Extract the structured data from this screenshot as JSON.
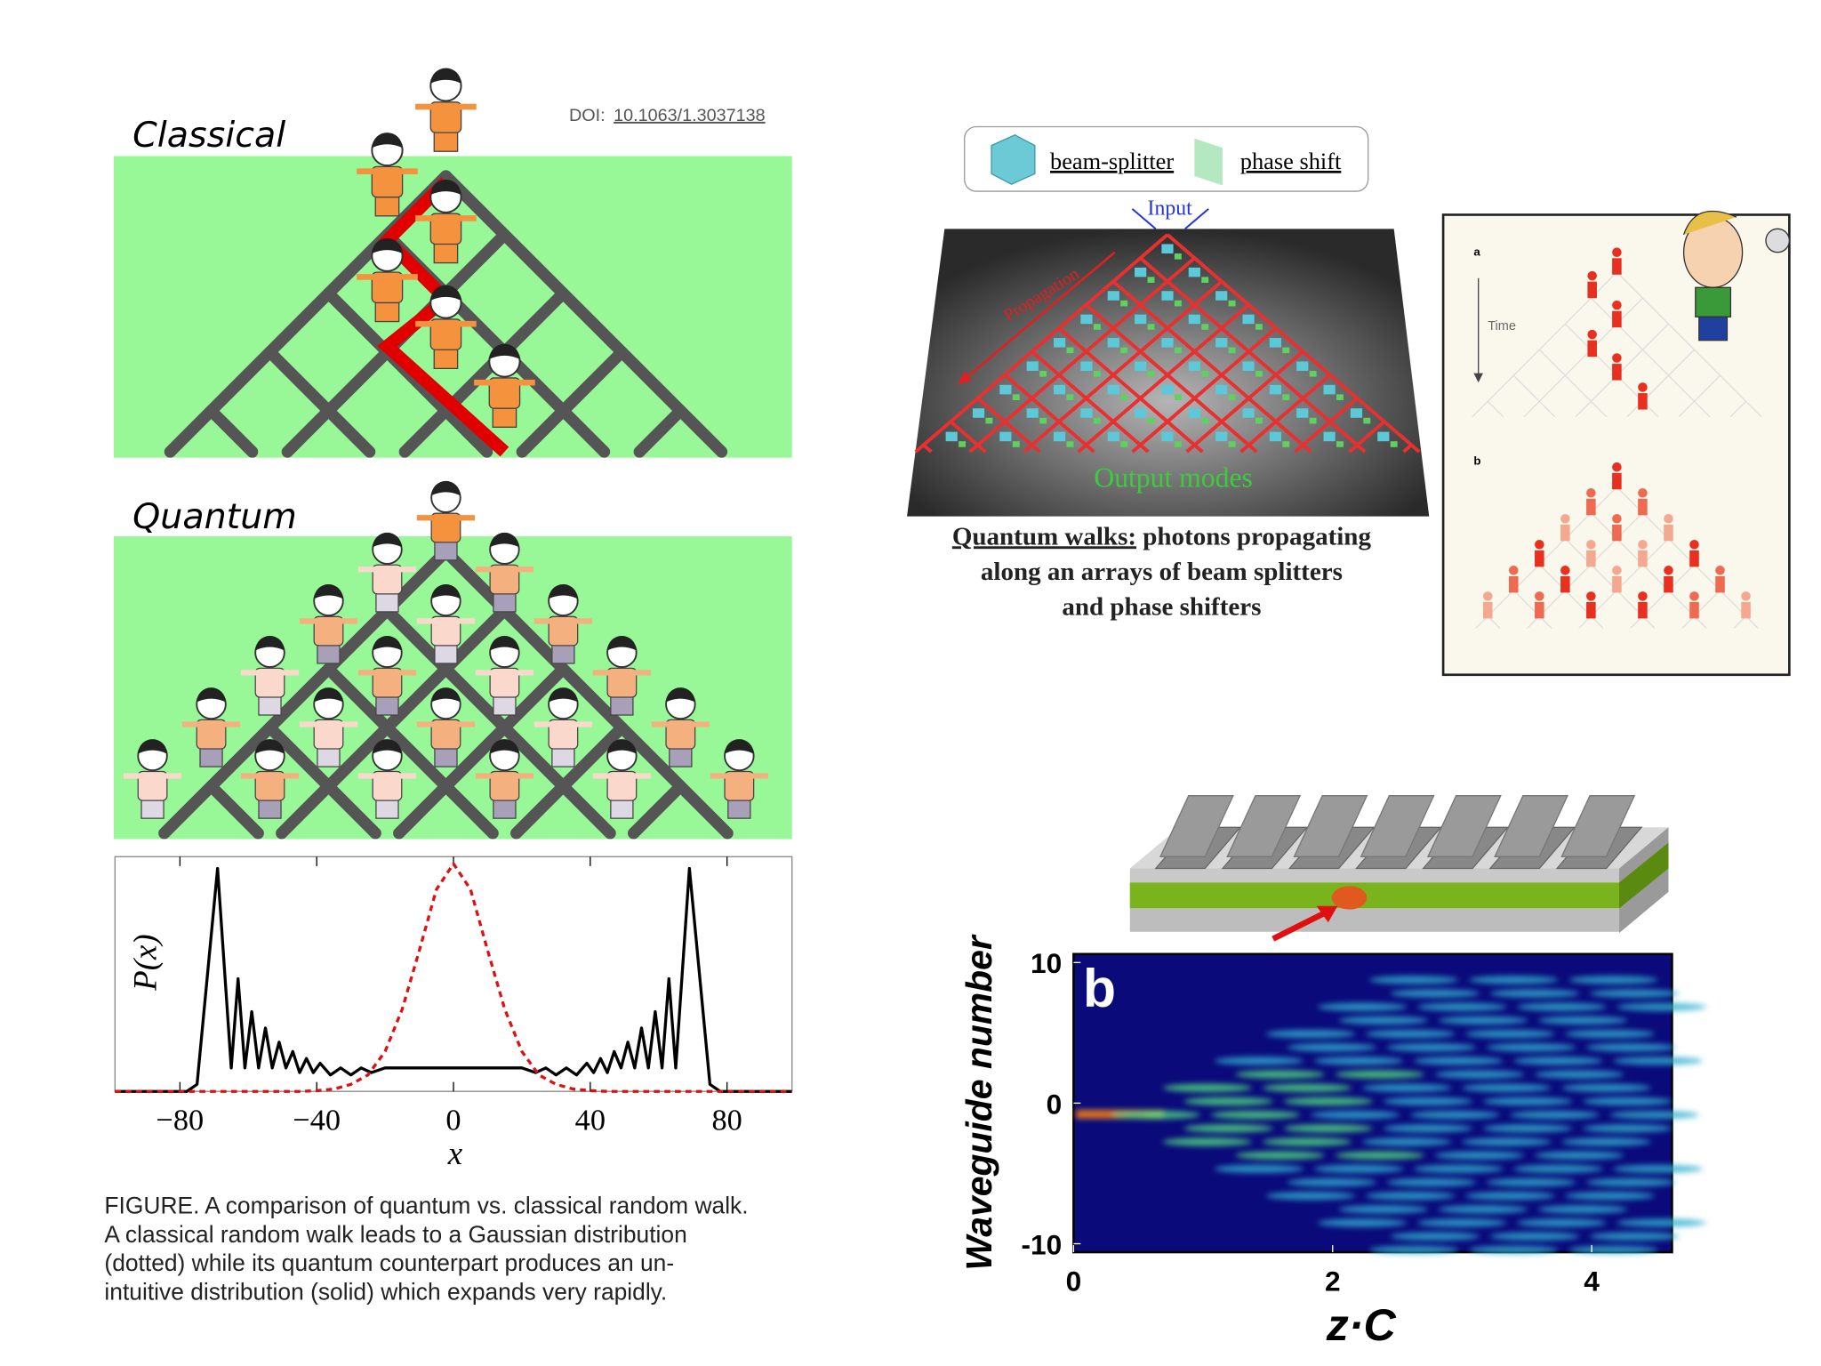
{
  "classical_panel": {
    "label": "Classical",
    "doi_prefix": "DOI:",
    "doi": "10.1063/1.3037138"
  },
  "quantum_panel": {
    "label": "Quantum"
  },
  "figure_caption": [
    "FIGURE. A comparison of quantum vs. classical random walk.",
    "A classical random walk leads to a Gaussian distribution",
    "(dotted) while its quantum counterpart produces an un-",
    "intuitive distribution (solid) which expands very rapidly."
  ],
  "photonic_panel": {
    "legend": [
      "beam-splitter",
      "phase shift"
    ],
    "input": "Input",
    "propagation": "Propagation",
    "output": "Output modes",
    "caption_title": "Quantum walks:",
    "caption": [
      " photons propagating",
      "along an arrays of beam splitters",
      "and phase shifters"
    ]
  },
  "cartoon_panel": {
    "label_a": "a",
    "time": "Time",
    "label_b": "b"
  },
  "chart_data": [
    {
      "type": "line",
      "xlabel": "x",
      "ylabel": "P(x)",
      "xlim": [
        -99,
        99
      ],
      "ylim": [
        0,
        1
      ],
      "xticks": [
        {
          "value": -80,
          "label": "−80"
        },
        {
          "value": -40,
          "label": "−40"
        },
        0,
        40,
        80
      ],
      "series": [
        {
          "color": "#000000",
          "dash": false,
          "x": [
            -99,
            -78,
            -75,
            -69,
            -65,
            -63,
            -61,
            -59,
            -57,
            -55,
            -53,
            -51,
            -49,
            -47,
            -45,
            -43,
            -41,
            -39,
            -36,
            -33,
            -30,
            -27,
            -24,
            -20,
            -10,
            0,
            10,
            20,
            24,
            27,
            30,
            33,
            36,
            39,
            41,
            43,
            45,
            47,
            49,
            51,
            53,
            55,
            57,
            59,
            61,
            63,
            65,
            69,
            75,
            78,
            99
          ],
          "values": [
            0,
            0,
            0.03,
            0.95,
            0.1,
            0.48,
            0.1,
            0.34,
            0.1,
            0.27,
            0.1,
            0.21,
            0.1,
            0.17,
            0.08,
            0.14,
            0.08,
            0.12,
            0.07,
            0.1,
            0.07,
            0.1,
            0.08,
            0.1,
            0.1,
            0.1,
            0.1,
            0.1,
            0.08,
            0.1,
            0.07,
            0.1,
            0.07,
            0.12,
            0.08,
            0.14,
            0.08,
            0.17,
            0.1,
            0.21,
            0.1,
            0.27,
            0.1,
            0.34,
            0.1,
            0.48,
            0.1,
            0.95,
            0.03,
            0,
            0
          ]
        },
        {
          "color": "#dd1111",
          "dash": true,
          "x": [
            -99,
            -45,
            -40,
            -35,
            -30,
            -25,
            -20,
            -15,
            -10,
            -5,
            0,
            5,
            10,
            15,
            20,
            25,
            30,
            35,
            40,
            45,
            99
          ],
          "values": [
            0,
            0,
            0.003,
            0.01,
            0.03,
            0.07,
            0.17,
            0.35,
            0.6,
            0.86,
            0.97,
            0.86,
            0.6,
            0.35,
            0.17,
            0.07,
            0.03,
            0.01,
            0.003,
            0,
            0
          ]
        }
      ]
    },
    {
      "type": "heatmap",
      "panel_label": "b",
      "xlabel": "z·C",
      "ylabel": "Waveguide number",
      "xlim": [
        0,
        4.62
      ],
      "ylim": [
        -10.6,
        10.6
      ],
      "xticks": [
        0,
        2,
        4
      ],
      "yticks": [
        10,
        0,
        -10
      ]
    }
  ]
}
